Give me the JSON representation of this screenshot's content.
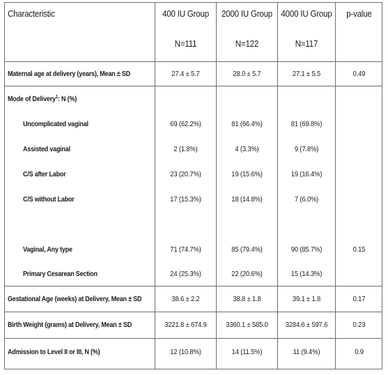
{
  "table": {
    "headers": [
      {
        "title": "Characteristic",
        "n": ""
      },
      {
        "title": "400 IU Group",
        "n": "N=111"
      },
      {
        "title": "2000 IU Group",
        "n": "N=122"
      },
      {
        "title": "4000 IU Group",
        "n": "N=117"
      },
      {
        "title": "p-value",
        "n": ""
      }
    ],
    "rows": [
      {
        "label": "Maternal age at delivery (years), Mean ± SD",
        "v400": "27.4 ± 5.7",
        "v2000": "28.0 ± 5.7",
        "v4000": "27.1 ± 5.5",
        "p": "0.49"
      },
      {
        "label": "Mode of Delivery",
        "label_sup": "1",
        "label_suffix": ":   N (%)",
        "v400": "",
        "v2000": "",
        "v4000": "",
        "p": ""
      },
      {
        "label": "Uncomplicated vaginal",
        "v400": "69 (62.2%)",
        "v2000": "81 (66.4%)",
        "v4000": "81 (69.8%)",
        "p": ""
      },
      {
        "label": "Assisted vaginal",
        "v400": "2 (1.8%)",
        "v2000": "4 (3.3%)",
        "v4000": "9 (7.8%)",
        "p": ""
      },
      {
        "label": "C/S after Labor",
        "v400": "23 (20.7%)",
        "v2000": "19 (15.6%)",
        "v4000": "19 (16.4%)",
        "p": ""
      },
      {
        "label": "C/S without Labor",
        "v400": "17 (15.3%)",
        "v2000": "18 (14.8%)",
        "v4000": "7 (6.0%)",
        "p": ""
      },
      {
        "label": "Vaginal, Any type",
        "v400": "71 (74.7%)",
        "v2000": "85 (79.4%)",
        "v4000": "90 (85.7%)",
        "p": "0.15"
      },
      {
        "label": "Primary Cesarean Section",
        "v400": "24 (25.3%)",
        "v2000": "22 (20.6%)",
        "v4000": "15 (14.3%)",
        "p": ""
      },
      {
        "label": "Gestational Age (weeks) at Delivery, Mean ± SD",
        "v400": "38.6 ± 2.2",
        "v2000": "38.8 ± 1.8",
        "v4000": "39.1 ± 1.8",
        "p": "0.17"
      },
      {
        "label": "Birth Weight (grams) at Delivery, Mean ± SD",
        "v400": "3221.8 ± 674.9",
        "v2000": "3360.1 ± 585.0",
        "v4000": "3284.6 ± 597.6",
        "p": "0.23"
      },
      {
        "label": "Admission to Level II or III, N (%)",
        "v400": "12 (10.8%)",
        "v2000": "14 (11.5%)",
        "v4000": "11 (9.4%)",
        "p": "0.9"
      }
    ]
  }
}
